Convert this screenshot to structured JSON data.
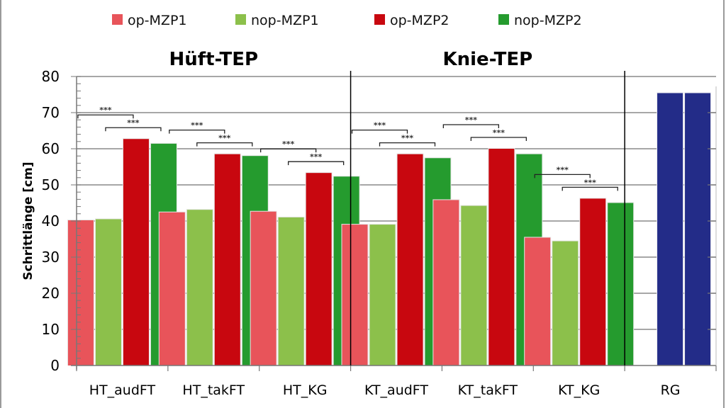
{
  "chart_data": {
    "type": "bar",
    "title": "",
    "ylabel": "Schrittlänge [cm]",
    "xlabel": "",
    "ylim": [
      0,
      80
    ],
    "yticks": [
      0,
      10,
      20,
      30,
      40,
      50,
      60,
      70,
      80
    ],
    "grid": true,
    "legend_position": "top",
    "panel_titles": [
      {
        "label": "Hüft-TEP",
        "categories": [
          "HT_audFT",
          "HT_takFT",
          "HT_KG"
        ]
      },
      {
        "label": "Knie-TEP",
        "categories": [
          "KT_audFT",
          "KT_takFT",
          "KT_KG"
        ]
      }
    ],
    "categories": [
      "HT_audFT",
      "HT_takFT",
      "HT_KG",
      "KT_audFT",
      "KT_takFT",
      "KT_KG",
      "RG"
    ],
    "series": [
      {
        "name": "op-MZP1",
        "color": "#e8545a",
        "values": [
          40.2,
          42.4,
          42.6,
          39.0,
          45.8,
          35.4,
          null
        ]
      },
      {
        "name": "nop-MZP1",
        "color": "#8cc04b",
        "values": [
          40.5,
          43.1,
          41.0,
          39.0,
          44.2,
          34.4,
          null
        ]
      },
      {
        "name": "op-MZP2",
        "color": "#c8070f",
        "values": [
          62.7,
          58.5,
          53.3,
          58.5,
          60.0,
          46.2,
          null
        ]
      },
      {
        "name": "nop-MZP2",
        "color": "#259b2e",
        "values": [
          61.4,
          58.0,
          52.3,
          57.4,
          58.5,
          45.0,
          null
        ]
      }
    ],
    "reference_group": {
      "category": "RG",
      "color": "#232c88",
      "values": [
        75.4,
        75.4
      ]
    },
    "significance": [
      {
        "category": "HT_audFT",
        "pairs": [
          [
            "op-MZP1",
            "op-MZP2"
          ],
          [
            "nop-MZP1",
            "nop-MZP2"
          ]
        ],
        "label": "***"
      },
      {
        "category": "HT_takFT",
        "pairs": [
          [
            "op-MZP1",
            "op-MZP2"
          ],
          [
            "nop-MZP1",
            "nop-MZP2"
          ]
        ],
        "label": "***"
      },
      {
        "category": "HT_KG",
        "pairs": [
          [
            "op-MZP1",
            "op-MZP2"
          ],
          [
            "nop-MZP1",
            "nop-MZP2"
          ]
        ],
        "label": "***"
      },
      {
        "category": "KT_audFT",
        "pairs": [
          [
            "op-MZP1",
            "op-MZP2"
          ],
          [
            "nop-MZP1",
            "nop-MZP2"
          ]
        ],
        "label": "***"
      },
      {
        "category": "KT_takFT",
        "pairs": [
          [
            "op-MZP1",
            "op-MZP2"
          ],
          [
            "nop-MZP1",
            "nop-MZP2"
          ]
        ],
        "label": "***"
      },
      {
        "category": "KT_KG",
        "pairs": [
          [
            "op-MZP1",
            "op-MZP2"
          ],
          [
            "nop-MZP1",
            "nop-MZP2"
          ]
        ],
        "label": "***"
      }
    ]
  }
}
